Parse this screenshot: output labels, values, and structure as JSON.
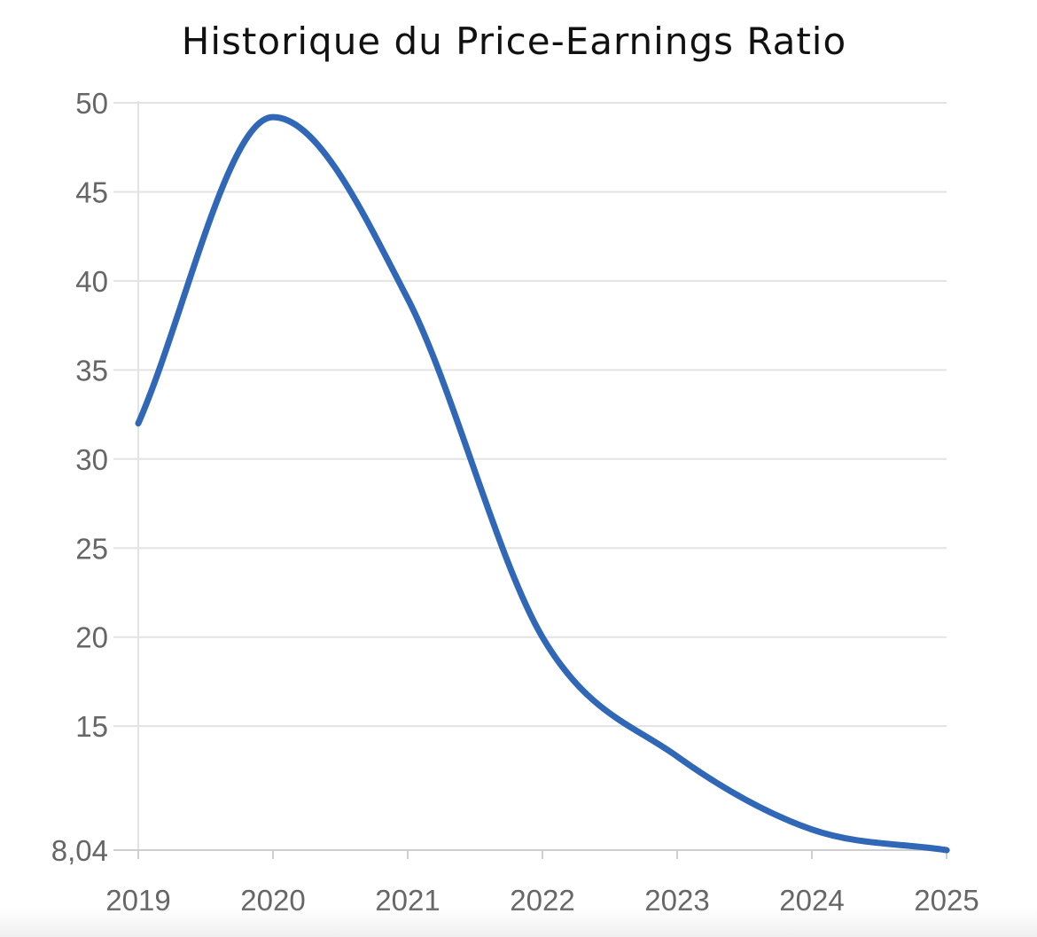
{
  "chart_data": {
    "type": "line",
    "title": "Historique du Price-Earnings Ratio",
    "xlabel": "",
    "ylabel": "",
    "x": [
      "2019",
      "2020",
      "2021",
      "2022",
      "2023",
      "2024",
      "2025"
    ],
    "series": [
      {
        "values": [
          32,
          49.2,
          39,
          20,
          13.3,
          9.2,
          8.04
        ]
      }
    ],
    "ylim": [
      8.04,
      50
    ],
    "y_ticks": [
      "8,04",
      "15",
      "20",
      "25",
      "30",
      "35",
      "40",
      "45",
      "50"
    ],
    "y_tick_values": [
      8.04,
      15,
      20,
      25,
      30,
      35,
      40,
      45,
      50
    ],
    "grid": "horizontal",
    "legend": "none",
    "colors": {
      "line": "#3068b7",
      "grid": "#e3e3e3",
      "axis": "#cfcfcf",
      "tick_text": "#666666"
    }
  }
}
